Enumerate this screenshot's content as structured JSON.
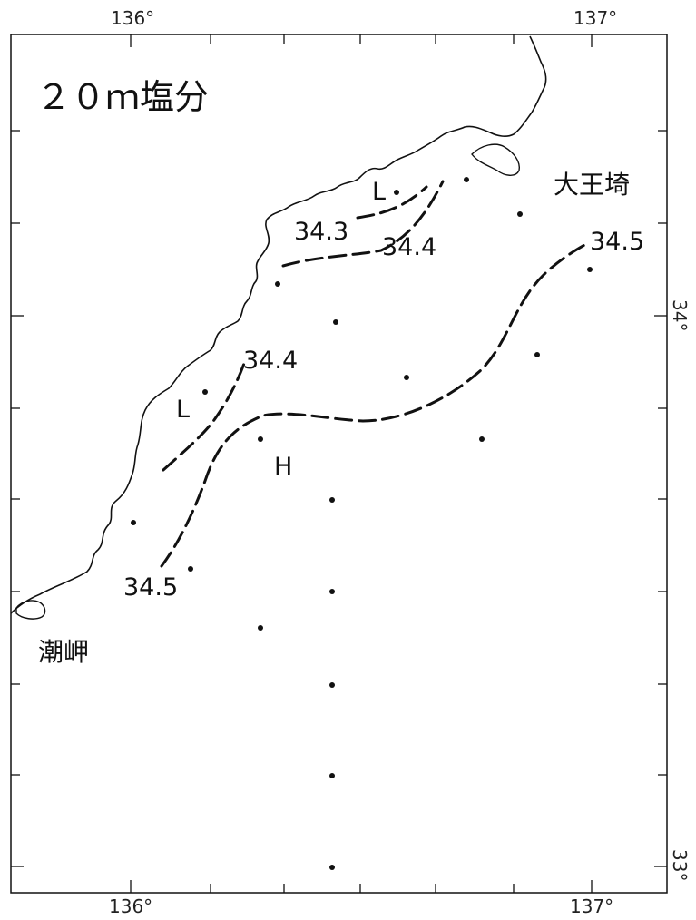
{
  "map": {
    "title": "２０ｍ塩分",
    "lon_labels_top": [
      "136°",
      "137°"
    ],
    "lon_labels_bottom": [
      "136°",
      "137°"
    ],
    "lat_labels": [
      "34°",
      "33°"
    ],
    "place_names": {
      "daiozaki": "大王埼",
      "shionomisaki": "潮岬"
    },
    "contour_labels": {
      "c343": "34.3",
      "c344_north": "34.4",
      "c344_south": "34.4",
      "c345_east": "34.5",
      "c345_south": "34.5"
    },
    "pressure_marks": {
      "low_north": "L",
      "low_west": "L",
      "high": "H"
    },
    "colors": {
      "ink": "#111111",
      "background": "#ffffff"
    }
  }
}
